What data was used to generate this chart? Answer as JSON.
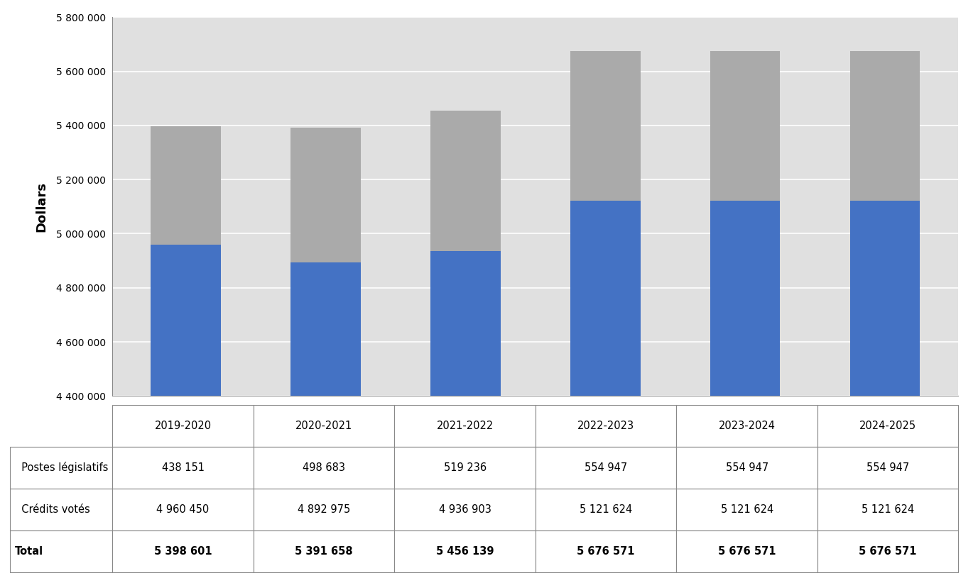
{
  "categories": [
    "2019-2020",
    "2020-2021",
    "2021-2022",
    "2022-2023",
    "2023-2024",
    "2024-2025"
  ],
  "credits_votes": [
    4960450,
    4892975,
    4936903,
    5121624,
    5121624,
    5121624
  ],
  "postes_legislatifs": [
    438151,
    498683,
    519236,
    554947,
    554947,
    554947
  ],
  "totals": [
    5398601,
    5391658,
    5456139,
    5676571,
    5676571,
    5676571
  ],
  "bar_color_blue": "#4472C4",
  "bar_color_gray": "#AAAAAA",
  "ylabel": "Dollars",
  "ylim_min": 4400000,
  "ylim_max": 5800000,
  "yticks": [
    4400000,
    4600000,
    4800000,
    5000000,
    5200000,
    5400000,
    5600000,
    5800000
  ],
  "legend_label_gray": "Postes législatifs",
  "legend_label_blue": "Crédits votés",
  "table_row_labels": [
    "■ Postes législatifs",
    "■ Crédits votés",
    "Total"
  ],
  "table_row_colors": [
    "#AAAAAA",
    "#4472C4",
    null
  ],
  "plot_bg_color": "#E0E0E0",
  "outer_bg_color": "#FFFFFF",
  "bar_width": 0.5,
  "grid_color": "#FFFFFF",
  "postes_leg_display": [
    "438 151",
    "498 683",
    "519 236",
    "554 947",
    "554 947",
    "554 947"
  ],
  "credits_votes_display": [
    "4 960 450",
    "4 892 975",
    "4 936 903",
    "5 121 624",
    "5 121 624",
    "5 121 624"
  ],
  "totals_display": [
    "5 398 601",
    "5 391 658",
    "5 456 139",
    "5 676 571",
    "5 676 571",
    "5 676 571"
  ]
}
